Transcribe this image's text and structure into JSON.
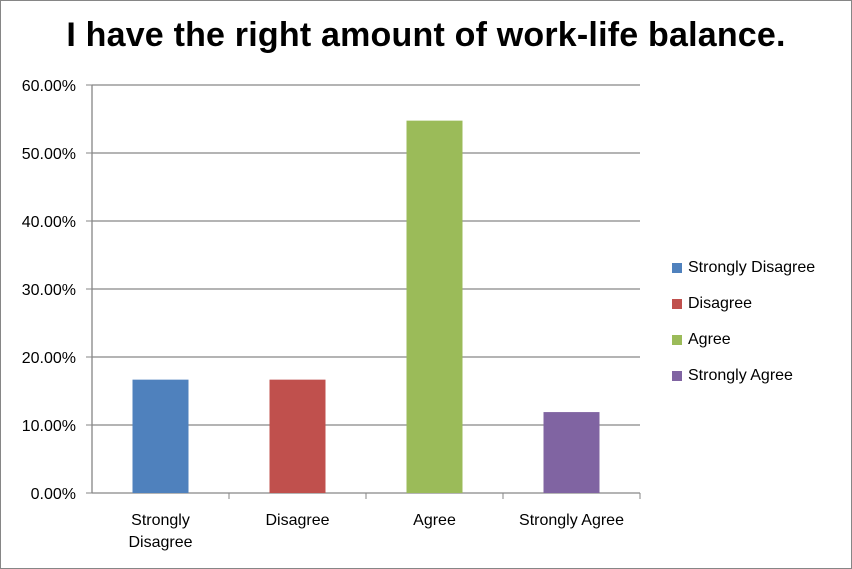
{
  "chart_data": {
    "type": "bar",
    "title": "I have the right amount of work-life balance.",
    "categories": [
      "Strongly Disagree",
      "Disagree",
      "Agree",
      "Strongly Agree"
    ],
    "category_label_lines": [
      [
        "Strongly",
        "Disagree"
      ],
      [
        "Disagree"
      ],
      [
        "Agree"
      ],
      [
        "Strongly Agree"
      ]
    ],
    "values": [
      16.67,
      16.67,
      54.76,
      11.9
    ],
    "colors": [
      "#4F81BD",
      "#C0504D",
      "#9BBB59",
      "#8064A2"
    ],
    "ylim": [
      0,
      60
    ],
    "yticks": [
      "0.00%",
      "10.00%",
      "20.00%",
      "30.00%",
      "40.00%",
      "50.00%",
      "60.00%"
    ],
    "grid": true,
    "legend_position": "right",
    "legend": [
      {
        "label": "Strongly Disagree",
        "color": "#4F81BD"
      },
      {
        "label": "Disagree",
        "color": "#C0504D"
      },
      {
        "label": "Agree",
        "color": "#9BBB59"
      },
      {
        "label": "Strongly Agree",
        "color": "#8064A2"
      }
    ]
  }
}
